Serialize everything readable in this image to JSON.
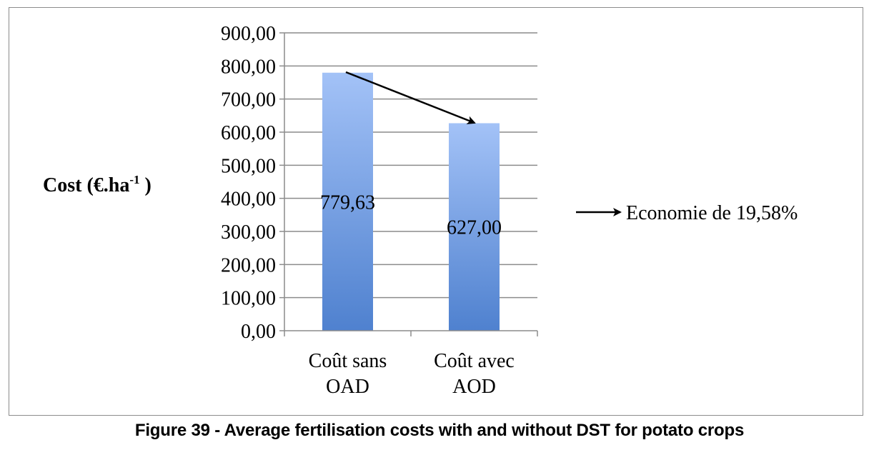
{
  "chart_data": {
    "type": "bar",
    "categories": [
      [
        "Coût sans",
        "OAD"
      ],
      [
        "Coût avec",
        "AOD"
      ]
    ],
    "values": [
      779.63,
      627.0
    ],
    "data_labels": [
      "779,63",
      "627,00"
    ],
    "ylim": [
      0,
      900
    ],
    "yticks": [
      0,
      100,
      200,
      300,
      400,
      500,
      600,
      700,
      800,
      900
    ],
    "ytick_labels": [
      "0,00",
      "100,00",
      "200,00",
      "300,00",
      "400,00",
      "500,00",
      "600,00",
      "700,00",
      "800,00",
      "900,00"
    ],
    "ylabel": {
      "main": "Cost (€.ha",
      "superscript": "-1",
      "close": " )"
    },
    "xlabel": "",
    "grid": true,
    "legend": "none",
    "annotation": "Economie de 19,58%",
    "colors": {
      "bar_top": "#a3c2f7",
      "bar_bottom": "#4f81cf",
      "grid": "#8c8c8c",
      "axis": "#8c8c8c",
      "arrow": "#000000"
    }
  },
  "caption": "Figure 39 - Average fertilisation costs with and without DST for potato crops"
}
